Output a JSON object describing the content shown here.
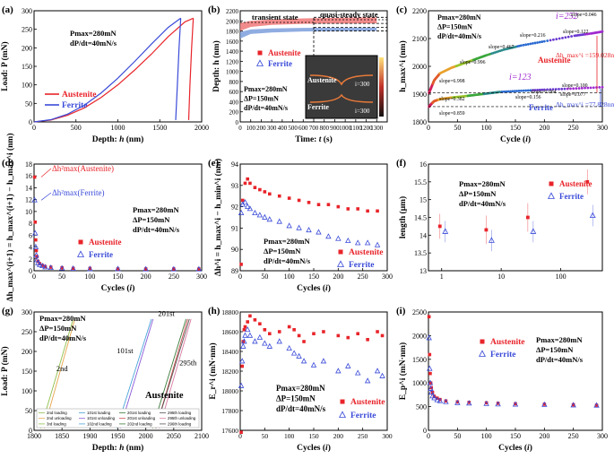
{
  "panels": [
    {
      "id": "a",
      "label": "(a)",
      "type": "line",
      "xlabel": "Depth: h (nm)",
      "ylabel": "Load: P (mN)",
      "xlim": [
        0,
        2000
      ],
      "ylim": [
        0,
        300
      ],
      "xticks": [
        0,
        500,
        1000,
        1500,
        2000
      ],
      "yticks": [
        0,
        50,
        100,
        150,
        200,
        250,
        300
      ],
      "notes": [
        "Pmax=280mN",
        "dP/dt=40mN/s"
      ],
      "series": [
        {
          "name": "Austenite",
          "color": "#e8242a",
          "load_x": [
            0,
            200,
            400,
            600,
            800,
            1000,
            1200,
            1400,
            1600,
            1800,
            1900
          ],
          "load_y": [
            0,
            5,
            18,
            38,
            66,
            100,
            140,
            183,
            230,
            270,
            280
          ],
          "unload_x": [
            1900,
            1880,
            1860,
            1845
          ],
          "unload_y": [
            280,
            200,
            100,
            5
          ]
        },
        {
          "name": "Ferrite",
          "color": "#3a4bd8",
          "load_x": [
            0,
            200,
            400,
            600,
            800,
            1000,
            1200,
            1400,
            1600,
            1750
          ],
          "load_y": [
            0,
            6,
            21,
            45,
            78,
            118,
            163,
            210,
            255,
            280
          ],
          "unload_x": [
            1750,
            1730,
            1710,
            1690
          ],
          "unload_y": [
            280,
            200,
            100,
            5
          ]
        }
      ]
    },
    {
      "id": "b",
      "label": "(b)",
      "type": "scatter-band",
      "xlabel": "Time: t (s)",
      "ylabel": "Depth: h (nm)",
      "xlim": [
        0,
        1400
      ],
      "ylim": [
        0,
        2200
      ],
      "xticks": [
        0,
        100,
        200,
        300,
        400,
        500,
        600,
        700,
        800,
        900,
        1000,
        1100,
        1200,
        1300
      ],
      "yticks": [
        0,
        200,
        400,
        600,
        800,
        1000,
        1200,
        1400,
        1600,
        1800,
        2000,
        2200
      ],
      "annotations": [
        "transient state",
        "quasi-steady state"
      ],
      "notes": [
        "Pmax=280mN",
        "ΔP=150mN",
        "dP/dt=40mN/s"
      ],
      "inset": {
        "labels": [
          "Austenite",
          "Ferrite"
        ],
        "cycle": "i=300"
      },
      "series": [
        {
          "name": "Austenite",
          "color": "#f07878",
          "t": [
            0,
            100,
            300,
            600,
            900,
            1300
          ],
          "h_low": [
            1800,
            1880,
            1920,
            1940,
            1945,
            1950
          ],
          "h_high": [
            1960,
            2000,
            2030,
            2050,
            2060,
            2070
          ]
        },
        {
          "name": "Ferrite",
          "color": "#7d9fdc",
          "t": [
            0,
            100,
            300,
            600,
            900,
            1300
          ],
          "h_low": [
            1650,
            1740,
            1770,
            1790,
            1795,
            1800
          ],
          "h_high": [
            1780,
            1830,
            1850,
            1860,
            1865,
            1870
          ]
        }
      ]
    },
    {
      "id": "c",
      "label": "(c)",
      "type": "scatter",
      "xlabel": "Cycle (i)",
      "ylabel": "h_max^i (nm)",
      "xlim": [
        0,
        300
      ],
      "ylim": [
        1800,
        2200
      ],
      "xticks": [
        0,
        50,
        100,
        150,
        200,
        250,
        300
      ],
      "yticks": [
        1800,
        1900,
        2000,
        2100,
        2200
      ],
      "notes": [
        "Pmax=280mN",
        "ΔP=150mN",
        "dP/dt=40mN/s"
      ],
      "series_labels": [
        "Austenite",
        "Ferrite"
      ],
      "cycle_labels": [
        "i=252",
        "i=123"
      ],
      "delta_labels": [
        "Δh_max^i =159.028nm",
        "Δh_max^i =77.828nm"
      ],
      "slopes": [
        "slope=0.046",
        "slope=0.122",
        "slope=0.216",
        "slope=0.467",
        "slope=0.996",
        "slope=6.998",
        "slope=0.382",
        "slope=0.859",
        "slope=0.156",
        "slope=0.064",
        "slope=0.100",
        "slope=0.077"
      ],
      "series": [
        {
          "name": "Austenite",
          "x": [
            1,
            5,
            10,
            20,
            40,
            60,
            80,
            100,
            130,
            160,
            200,
            252,
            280,
            300
          ],
          "y": [
            1905,
            1925,
            1950,
            1975,
            1995,
            2010,
            2025,
            2040,
            2060,
            2075,
            2090,
            2110,
            2118,
            2125
          ]
        },
        {
          "name": "Ferrite",
          "x": [
            1,
            5,
            10,
            20,
            40,
            60,
            80,
            100,
            123,
            160,
            200,
            250,
            300
          ],
          "y": [
            1855,
            1865,
            1875,
            1882,
            1888,
            1892,
            1897,
            1902,
            1908,
            1912,
            1916,
            1920,
            1925
          ]
        }
      ]
    },
    {
      "id": "d",
      "label": "(d)",
      "type": "scatter",
      "xlabel": "Cycles (i)",
      "ylabel": "Δh_max^(i+1) = h_max^(i+1) − h_max^i (nm)",
      "xlim": [
        0,
        300
      ],
      "ylim": [
        0,
        18
      ],
      "xticks": [
        0,
        50,
        100,
        150,
        200,
        250,
        300
      ],
      "yticks": [
        0,
        2,
        4,
        6,
        8,
        10,
        12,
        14,
        16,
        18
      ],
      "notes": [
        "Pmax=280mN",
        "ΔP=150mN",
        "dP/dt=40mN/s"
      ],
      "annotations": [
        "Δh²max(Austenite)",
        "Δh²max(Ferrite)"
      ],
      "series": [
        {
          "name": "Austenite",
          "color": "#e8242a",
          "x": [
            1,
            2,
            3,
            4,
            5,
            7,
            10,
            15,
            20,
            30,
            50,
            70,
            100,
            150,
            200,
            250,
            295
          ],
          "y": [
            15.8,
            8.2,
            5.2,
            3.4,
            2.4,
            1.6,
            1.2,
            0.9,
            0.7,
            0.6,
            0.5,
            0.4,
            0.4,
            0.3,
            0.3,
            0.3,
            0.3
          ]
        },
        {
          "name": "Ferrite",
          "color": "#3a4bd8",
          "x": [
            1,
            2,
            3,
            4,
            5,
            7,
            10,
            15,
            20,
            30,
            50,
            70,
            100,
            150,
            200,
            250,
            295
          ],
          "y": [
            11.9,
            6.3,
            4.0,
            2.6,
            1.8,
            1.3,
            1.0,
            0.8,
            0.6,
            0.5,
            0.4,
            0.35,
            0.3,
            0.3,
            0.25,
            0.25,
            0.25
          ]
        }
      ]
    },
    {
      "id": "e",
      "label": "(e)",
      "type": "scatter",
      "xlabel": "Cycles (i)",
      "ylabel": "Δh^i = h_max^i − h_min^i (nm)",
      "xlim": [
        0,
        300
      ],
      "ylim": [
        89,
        94
      ],
      "xticks": [
        0,
        50,
        100,
        150,
        200,
        250,
        300
      ],
      "yticks": [
        89,
        90,
        91,
        92,
        93,
        94
      ],
      "notes": [
        "Pmax=280mN",
        "ΔP=150mN",
        "dP/dt=40mN/s"
      ],
      "series": [
        {
          "name": "Austenite",
          "color": "#e8242a",
          "x": [
            2,
            5,
            10,
            15,
            20,
            30,
            40,
            50,
            60,
            80,
            100,
            120,
            140,
            160,
            180,
            200,
            220,
            240,
            260,
            280
          ],
          "y": [
            89.3,
            92.3,
            93.1,
            93.3,
            93.1,
            92.9,
            92.8,
            92.7,
            92.6,
            92.5,
            92.4,
            92.3,
            92.2,
            92.1,
            92.1,
            92.0,
            91.9,
            91.9,
            91.8,
            91.8
          ]
        },
        {
          "name": "Ferrite",
          "color": "#3a4bd8",
          "x": [
            2,
            5,
            10,
            15,
            20,
            30,
            40,
            50,
            60,
            80,
            100,
            120,
            140,
            160,
            180,
            200,
            220,
            240,
            260,
            280
          ],
          "y": [
            91.7,
            92.1,
            92.2,
            92.0,
            91.9,
            91.7,
            91.6,
            91.5,
            91.4,
            91.3,
            91.1,
            91.0,
            90.9,
            90.8,
            90.6,
            90.5,
            90.4,
            90.3,
            90.3,
            90.2
          ]
        }
      ]
    },
    {
      "id": "f",
      "label": "(f)",
      "type": "errorbar-scatter",
      "xlabel": "",
      "ylabel": "length (μm)",
      "xscale": "log",
      "xlim": [
        0.6,
        500
      ],
      "ylim": [
        13.0,
        16.0
      ],
      "xticks": [
        1,
        10,
        100
      ],
      "yticks": [
        13.0,
        13.5,
        14.0,
        14.5,
        15.0,
        15.5,
        16.0
      ],
      "notes": [
        "Pmax=280mN",
        "ΔP=150mN",
        "dP/dt=40mN/s"
      ],
      "series": [
        {
          "name": "Austenite",
          "color": "#e8242a",
          "x": [
            1,
            6,
            30,
            300
          ],
          "y": [
            14.25,
            14.15,
            14.5,
            15.5
          ],
          "err": [
            0.35,
            0.4,
            0.4,
            0.35
          ]
        },
        {
          "name": "Ferrite",
          "color": "#3a4bd8",
          "x": [
            1,
            6,
            30,
            300
          ],
          "y": [
            14.1,
            13.85,
            14.1,
            14.55
          ],
          "err": [
            0.3,
            0.3,
            0.3,
            0.3
          ]
        }
      ]
    },
    {
      "id": "g",
      "label": "(g)",
      "type": "line",
      "xlabel": "Depth: h (nm)",
      "ylabel": "Load: P (mN)",
      "xlim": [
        1800,
        2100
      ],
      "ylim": [
        0,
        300
      ],
      "xticks": [
        1800,
        1850,
        1900,
        1950,
        2000,
        2050,
        2100
      ],
      "yticks": [
        0,
        50,
        100,
        150,
        200,
        250,
        300
      ],
      "notes": [
        "Pmax=280mN",
        "ΔP=150mN",
        "dP/dt=40mN/s"
      ],
      "loop_labels": [
        "2nd",
        "101st",
        "201st",
        "295th"
      ],
      "material": "Austenite",
      "legend": [
        "2nd loading",
        "2nd unloading",
        "3rd loading",
        "101st loading",
        "101st unloading",
        "102nd loading",
        "201st loading",
        "201st unloading",
        "202nd loading",
        "295th loading",
        "295th unloading",
        "296th loading"
      ]
    },
    {
      "id": "h",
      "label": "(h)",
      "type": "scatter",
      "xlabel": "Cycles (i)",
      "ylabel": "E_r^i (mN·nm)",
      "xlim": [
        0,
        300
      ],
      "ylim": [
        17600,
        18800
      ],
      "xticks": [
        0,
        50,
        100,
        150,
        200,
        250,
        300
      ],
      "yticks": [
        17600,
        17800,
        18000,
        18200,
        18400,
        18600,
        18800
      ],
      "notes": [
        "Pmax=280mN",
        "ΔP=150mN",
        "dP/dt=40mN/s"
      ],
      "series": [
        {
          "name": "Austenite",
          "color": "#e8242a",
          "x": [
            2,
            4,
            6,
            8,
            10,
            15,
            20,
            30,
            40,
            50,
            60,
            80,
            100,
            110,
            120,
            130,
            150,
            170,
            200,
            220,
            240,
            260,
            280,
            290
          ],
          "y": [
            17580,
            18250,
            18500,
            18620,
            18650,
            18700,
            18760,
            18720,
            18680,
            18620,
            18580,
            18600,
            18650,
            18620,
            18560,
            18500,
            18580,
            18600,
            18560,
            18540,
            18580,
            18520,
            18600,
            18560
          ]
        },
        {
          "name": "Ferrite",
          "color": "#3a4bd8",
          "x": [
            2,
            4,
            6,
            8,
            10,
            15,
            20,
            30,
            40,
            50,
            60,
            80,
            100,
            110,
            120,
            130,
            150,
            170,
            200,
            220,
            240,
            260,
            280,
            290
          ],
          "y": [
            18050,
            18300,
            18450,
            18500,
            18560,
            18620,
            18560,
            18500,
            18540,
            18480,
            18450,
            18500,
            18430,
            18380,
            18350,
            18300,
            18260,
            18300,
            18200,
            18250,
            18180,
            18100,
            18200,
            18150
          ]
        }
      ]
    },
    {
      "id": "i",
      "label": "(i)",
      "type": "scatter",
      "xlabel": "Cycles (i)",
      "ylabel": "E_p^i (mN·nm)",
      "xlim": [
        0,
        300
      ],
      "ylim": [
        0,
        2500
      ],
      "xticks": [
        0,
        50,
        100,
        150,
        200,
        250,
        300
      ],
      "yticks": [
        0,
        500,
        1000,
        1500,
        2000,
        2500
      ],
      "notes": [
        "Pmax=280mN",
        "ΔP=150mN",
        "dP/dt=40mN/s"
      ],
      "series": [
        {
          "name": "Austenite",
          "color": "#e8242a",
          "x": [
            1,
            2,
            3,
            4,
            5,
            7,
            10,
            15,
            20,
            30,
            50,
            70,
            100,
            120,
            150,
            200,
            250,
            290
          ],
          "y": [
            2400,
            1600,
            1200,
            1000,
            900,
            800,
            720,
            680,
            650,
            620,
            600,
            590,
            580,
            570,
            560,
            550,
            540,
            530
          ]
        },
        {
          "name": "Ferrite",
          "color": "#3a4bd8",
          "x": [
            1,
            2,
            3,
            4,
            5,
            7,
            10,
            15,
            20,
            30,
            50,
            70,
            100,
            120,
            150,
            200,
            250,
            290
          ],
          "y": [
            1950,
            1300,
            1000,
            880,
            800,
            720,
            680,
            640,
            620,
            600,
            580,
            570,
            560,
            550,
            545,
            540,
            530,
            525
          ]
        }
      ]
    }
  ]
}
